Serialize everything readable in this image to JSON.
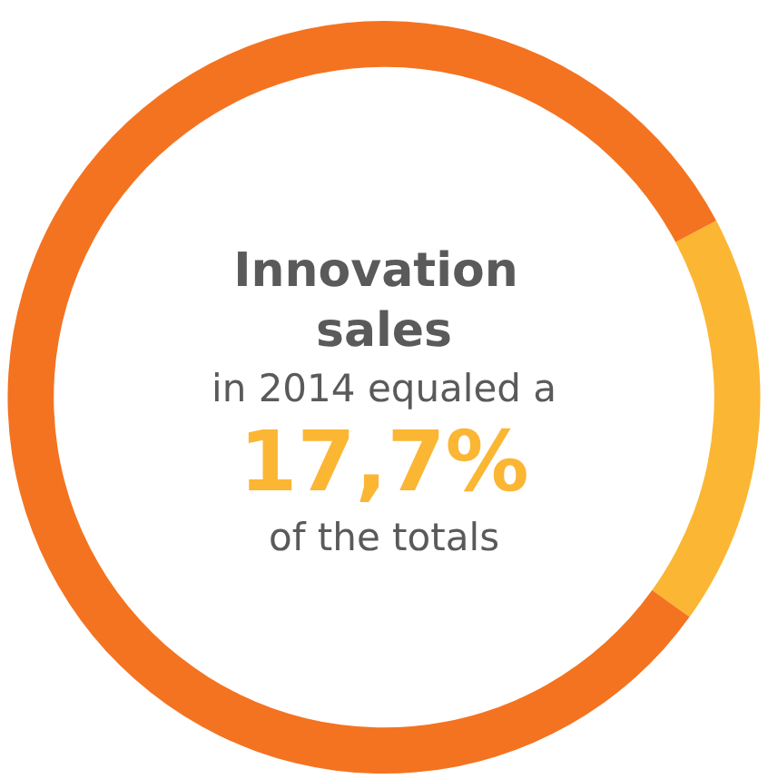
{
  "chart_data": {
    "type": "donut",
    "title": "Innovation sales",
    "categories": [
      null,
      null
    ],
    "values": [
      17.7,
      82.3
    ],
    "colors": [
      "#fbb634",
      "#f47320"
    ],
    "annotations": [
      "in 2014 equaled a",
      "17,7%",
      "of the totals"
    ]
  }
}
